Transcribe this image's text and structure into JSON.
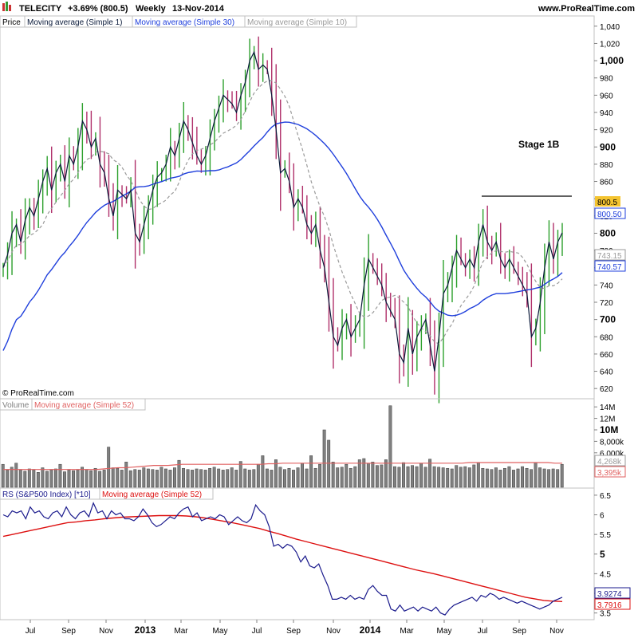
{
  "header": {
    "ticker": "TELECITY",
    "change": "+3.69% (800.5)",
    "period": "Weekly",
    "date": "13-Nov-2014",
    "website": "www.ProRealTime.com",
    "copyright": "© ProRealTime.com",
    "annotation": "Stage 1B"
  },
  "panes": {
    "price": {
      "legend": [
        "Price",
        "Moving average (Simple 1)",
        "Moving average (Simple 30)",
        "Moving average (Simple 10)"
      ],
      "y_ticks": [
        "1,040",
        "1,020",
        "1,000",
        "980",
        "960",
        "940",
        "920",
        "900",
        "880",
        "860",
        "840",
        "820",
        "800",
        "780",
        "760",
        "740",
        "720",
        "700",
        "680",
        "660",
        "640",
        "620"
      ],
      "bold_ticks": [
        "1,000",
        "900",
        "800",
        "700"
      ],
      "last_price_tag": "800.5",
      "ma30_tag": "800.50",
      "ma10_tag": "743.15",
      "ma30b_tag": "740.57"
    },
    "volume": {
      "legend": [
        "Volume",
        "Moving average (Simple 52)"
      ],
      "y_ticks": [
        "14M",
        "12M",
        "10M",
        "8,000k",
        "6,000k"
      ],
      "ma_tag": "4,268k",
      "last_tag": "3,395k"
    },
    "rs": {
      "legend": [
        "RS (S&P500 Index) [*10]",
        "Moving average (Simple 52)"
      ],
      "y_ticks": [
        "6.5",
        "6",
        "5.5",
        "5",
        "4.5",
        "4",
        "3.5"
      ],
      "rs_tag": "3.9274",
      "ma_tag": "3.7916"
    }
  },
  "x_axis": {
    "labels": [
      "Jul",
      "Sep",
      "Nov",
      "2013",
      "Mar",
      "May",
      "Jul",
      "Sep",
      "Nov",
      "2014",
      "Mar",
      "May",
      "Jul",
      "Sep",
      "Nov"
    ],
    "bold_labels": [
      "2013",
      "2014"
    ]
  },
  "colors": {
    "up_bar": "#2ca02c",
    "down_bar": "#b0306a",
    "line_ma1": "#0a1a3a",
    "line_ma30": "#1f3fdc",
    "line_ma10": "#9a9a9a",
    "volume_bar": "#808080",
    "volume_ma": "#e06060",
    "rs_line": "#1a1a8c",
    "rs_ma": "#dd1010",
    "tag_price_bg": "#f4c430"
  },
  "chart_data": {
    "type": "line",
    "x_start": "2012-06-01",
    "x_end": "2014-11-13",
    "weeks": 128,
    "price_range": [
      610,
      1050
    ],
    "price_close": [
      760,
      775,
      800,
      810,
      790,
      815,
      830,
      820,
      840,
      860,
      875,
      850,
      870,
      880,
      860,
      890,
      880,
      900,
      930,
      920,
      900,
      910,
      880,
      870,
      840,
      820,
      850,
      845,
      840,
      850,
      800,
      790,
      810,
      830,
      850,
      865,
      870,
      880,
      900,
      890,
      910,
      930,
      920,
      905,
      890,
      880,
      890,
      910,
      930,
      945,
      960,
      955,
      950,
      940,
      960,
      975,
      1000,
      1010,
      990,
      995,
      990,
      960,
      920,
      870,
      875,
      860,
      830,
      840,
      830,
      810,
      800,
      810,
      780,
      760,
      720,
      680,
      670,
      690,
      700,
      680,
      690,
      700,
      740,
      770,
      760,
      750,
      740,
      720,
      710,
      700,
      660,
      650,
      690,
      660,
      680,
      690,
      700,
      670,
      640,
      680,
      730,
      740,
      760,
      780,
      770,
      760,
      770,
      760,
      790,
      810,
      790,
      780,
      790,
      770,
      760,
      770,
      760,
      750,
      740,
      730,
      680,
      690,
      720,
      760,
      790,
      770,
      790,
      800.5
    ],
    "ma10_range": [
      600,
      1050
    ],
    "volume_range_millions": [
      0,
      15
    ],
    "volume_millions": [
      4,
      3,
      3.5,
      4.2,
      3,
      2.8,
      3.2,
      3,
      2.6,
      3.4,
      2.8,
      3,
      3.2,
      4,
      2.7,
      3,
      2.9,
      3,
      3.5,
      3.1,
      2.9,
      3.3,
      2.8,
      3,
      7,
      3.4,
      3.3,
      3,
      4.4,
      2.9,
      3.1,
      3,
      3.4,
      3.2,
      3.1,
      3,
      3.5,
      3.2,
      3,
      3.4,
      4.7,
      3.3,
      3.1,
      3,
      3.2,
      3.1,
      3,
      3.3,
      3.5,
      3.2,
      3,
      3.1,
      3.4,
      3,
      4.5,
      3.2,
      3,
      3.1,
      4,
      5.5,
      3.2,
      3,
      4.8,
      3.5,
      3.1,
      3.3,
      3,
      3.4,
      4.2,
      3.2,
      5.5,
      3.3,
      4,
      10,
      8.2,
      4.4,
      3.4,
      3.5,
      4,
      3.3,
      3.6,
      4.8,
      5,
      4.2,
      4.4,
      3.8,
      3.9,
      4.8,
      14.2,
      3.6,
      3.5,
      4.3,
      3.6,
      3.8,
      3.6,
      4.2,
      3.5,
      4.9,
      3.6,
      3.5,
      3.4,
      3.3,
      3.2,
      3.8,
      3.5,
      3.6,
      3.4,
      3.9,
      4.3,
      3.3,
      3.2,
      3.1,
      3.4,
      3,
      3.3,
      3.6,
      3,
      3.2,
      3.6,
      3.3,
      3.1,
      4.3,
      3.4,
      3.2,
      3.1,
      3.2,
      3.1,
      4
    ],
    "volume_ma_millions": [
      3.1,
      3.1,
      3.1,
      3.1,
      3.1,
      3.1,
      3.1,
      3.1,
      3.1,
      3.1,
      3.1,
      3.1,
      3.1,
      3.1,
      3.2,
      3.3,
      3.4,
      3.4,
      3.5,
      3.6,
      3.7,
      3.8,
      3.8,
      3.8,
      3.9,
      4,
      4,
      4,
      4,
      4,
      4,
      4,
      4,
      4,
      4,
      4,
      4,
      4.1,
      4.1,
      4.2,
      4.2,
      4.2,
      4.2,
      4.2,
      4.2,
      4.2,
      4.2,
      4.2,
      4.2,
      4.2,
      4.2,
      4.2,
      4.2,
      4.2,
      4.2,
      4.2,
      4.2,
      4.2,
      4.2,
      4.2,
      4.2,
      4.2,
      4.2,
      4.2,
      4.2,
      4.3,
      4.3,
      4.3,
      4.3,
      4.3,
      4.3,
      4.3,
      4.3,
      4.3,
      4.3,
      4.3,
      4.3,
      4.2,
      4.2
    ],
    "rs_range": [
      3.35,
      6.6
    ],
    "rs": [
      6,
      5.95,
      6.1,
      6.05,
      6.1,
      5.9,
      6.2,
      6.05,
      6.1,
      5.95,
      5.9,
      6.05,
      6.1,
      5.95,
      6.2,
      6,
      5.9,
      6.05,
      6.1,
      5.95,
      6.3,
      6.05,
      6.1,
      5.9,
      6.1,
      6,
      6.05,
      5.9,
      5.9,
      5.85,
      5.95,
      6.15,
      6,
      5.8,
      5.7,
      5.75,
      5.85,
      5.95,
      5.9,
      6.05,
      6.15,
      6.2,
      5.95,
      6.05,
      5.85,
      5.9,
      5.95,
      5.9,
      6,
      5.95,
      5.75,
      5.85,
      5.95,
      5.85,
      5.8,
      5.9,
      6.25,
      6.1,
      6,
      5.7,
      5.2,
      5.25,
      5.15,
      5.25,
      5.2,
      5.05,
      4.8,
      4.95,
      4.7,
      4.65,
      4.75,
      4.45,
      4.2,
      3.85,
      3.85,
      3.9,
      3.85,
      3.95,
      3.85,
      3.9,
      3.85,
      4.1,
      4.2,
      4.05,
      3.95,
      3.95,
      3.6,
      3.55,
      3.7,
      3.55,
      3.6,
      3.65,
      3.55,
      3.65,
      3.6,
      3.55,
      3.65,
      3.5,
      3.45,
      3.6,
      3.7,
      3.75,
      3.8,
      3.85,
      3.9,
      3.8,
      3.95,
      3.9,
      4,
      3.95,
      3.85,
      3.9,
      3.85,
      3.8,
      3.75,
      3.8,
      3.75,
      3.7,
      3.65,
      3.6,
      3.65,
      3.7,
      3.8,
      3.85,
      3.9
    ],
    "rs_ma": [
      5.45,
      5.5,
      5.55,
      5.6,
      5.65,
      5.7,
      5.75,
      5.8,
      5.82,
      5.85,
      5.87,
      5.9,
      5.92,
      5.94,
      5.95,
      5.96,
      5.97,
      5.98,
      5.98,
      5.98,
      5.97,
      5.95,
      5.92,
      5.88,
      5.84,
      5.8,
      5.75,
      5.7,
      5.65,
      5.58,
      5.52,
      5.45,
      5.38,
      5.32,
      5.26,
      5.2,
      5.14,
      5.08,
      5.02,
      4.96,
      4.9,
      4.84,
      4.78,
      4.72,
      4.66,
      4.6,
      4.55,
      4.5,
      4.44,
      4.38,
      4.32,
      4.26,
      4.2,
      4.14,
      4.08,
      4.02,
      3.96,
      3.9,
      3.86,
      3.82,
      3.8,
      3.79
    ]
  }
}
